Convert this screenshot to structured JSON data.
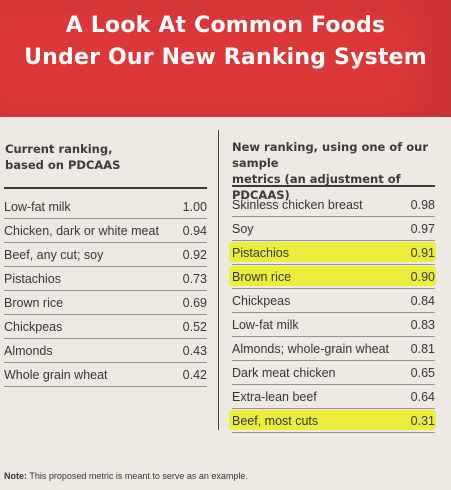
{
  "header": {
    "title_line1": "A Look At Common Foods",
    "title_line2": "Under Our New Ranking System",
    "background_color": "#dc3839"
  },
  "left_table": {
    "heading_line1": "Current ranking,",
    "heading_line2": "based on PDCAAS",
    "rows": [
      {
        "food": "Low-fat milk",
        "score": "1.00"
      },
      {
        "food": "Chicken, dark or white meat",
        "score": "0.94"
      },
      {
        "food": "Beef, any cut; soy",
        "score": "0.92"
      },
      {
        "food": "Pistachios",
        "score": "0.73"
      },
      {
        "food": "Brown rice",
        "score": "0.69"
      },
      {
        "food": "Chickpeas",
        "score": "0.52"
      },
      {
        "food": "Almonds",
        "score": "0.43"
      },
      {
        "food": "Whole grain wheat",
        "score": "0.42"
      }
    ]
  },
  "right_table": {
    "heading_line1": "New ranking, using one of our sample",
    "heading_line2": "metrics (an adjustment of PDCAAS)",
    "highlight_color": "#ecef1f",
    "rows": [
      {
        "food": "Skinless chicken breast",
        "score": "0.98",
        "highlighted": false
      },
      {
        "food": "Soy",
        "score": "0.97",
        "highlighted": false
      },
      {
        "food": "Pistachios",
        "score": "0.91",
        "highlighted": true
      },
      {
        "food": "Brown rice",
        "score": "0.90",
        "highlighted": true
      },
      {
        "food": "Chickpeas",
        "score": "0.84",
        "highlighted": false
      },
      {
        "food": "Low-fat milk",
        "score": "0.83",
        "highlighted": false
      },
      {
        "food": "Almonds; whole-grain wheat",
        "score": "0.81",
        "highlighted": false
      },
      {
        "food": "Dark meat chicken",
        "score": "0.65",
        "highlighted": false
      },
      {
        "food": "Extra-lean beef",
        "score": "0.64",
        "highlighted": false
      },
      {
        "food": "Beef, most cuts",
        "score": "0.31",
        "highlighted": true
      }
    ]
  },
  "note": {
    "label": "Note:",
    "text": " This proposed metric is meant to serve as an example."
  }
}
